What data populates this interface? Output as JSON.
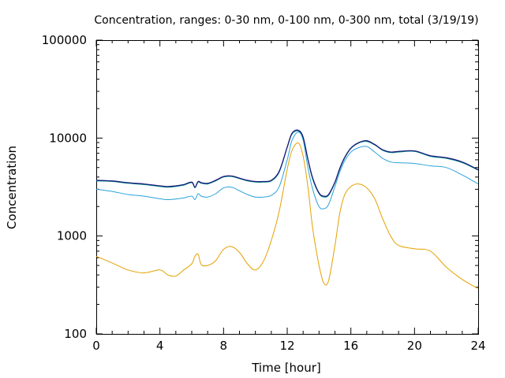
{
  "chart_data": {
    "type": "line",
    "title": "Concentration, ranges: 0-30 nm, 0-100 nm, 0-300 nm, total (3/19/19)",
    "xlabel": "Time [hour]",
    "ylabel": "Concentration",
    "xlim": [
      0,
      24
    ],
    "ylim": [
      100,
      100000
    ],
    "yscale": "log",
    "grid": false,
    "legend": "none",
    "x_ticks": [
      "0",
      "4",
      "8",
      "12",
      "16",
      "20",
      "24"
    ],
    "y_ticks": [
      "100",
      "1000",
      "10000",
      "100000"
    ],
    "x_tick_values": [
      0,
      4,
      8,
      12,
      16,
      20,
      24
    ],
    "y_tick_values": [
      100,
      1000,
      10000,
      100000
    ],
    "series": [
      {
        "color": "#e5a100",
        "x": [
          0,
          1,
          2,
          3,
          4,
          4.5,
          5,
          5.5,
          6,
          6.2,
          6.4,
          6.6,
          7,
          7.5,
          8,
          8.5,
          9,
          9.5,
          10,
          10.5,
          11,
          11.5,
          12,
          12.3,
          12.7,
          13,
          13.3,
          13.6,
          14,
          14.3,
          14.6,
          15,
          15.3,
          15.6,
          16,
          16.5,
          17,
          17.5,
          18,
          18.5,
          19,
          20,
          21,
          22,
          23,
          24
        ],
        "y": [
          620,
          530,
          450,
          420,
          450,
          400,
          390,
          450,
          520,
          620,
          650,
          510,
          500,
          560,
          730,
          780,
          680,
          520,
          450,
          550,
          900,
          1800,
          4800,
          7500,
          8900,
          6500,
          3200,
          1200,
          500,
          330,
          350,
          800,
          1700,
          2600,
          3200,
          3400,
          3100,
          2400,
          1500,
          1000,
          800,
          740,
          700,
          480,
          360,
          290
        ]
      },
      {
        "color": "#2aa3d9",
        "x": [
          0,
          1,
          2,
          3,
          4,
          4.5,
          5,
          5.5,
          6,
          6.2,
          6.4,
          6.6,
          7,
          7.5,
          8,
          8.5,
          9,
          9.5,
          10,
          10.5,
          11,
          11.5,
          12,
          12.3,
          12.7,
          13,
          13.3,
          13.6,
          14,
          14.3,
          14.6,
          15,
          15.3,
          15.6,
          16,
          16.5,
          17,
          17.5,
          18,
          18.5,
          19,
          20,
          21,
          22,
          23,
          24
        ],
        "y": [
          3000,
          2850,
          2650,
          2550,
          2400,
          2350,
          2380,
          2450,
          2550,
          2350,
          2700,
          2550,
          2500,
          2700,
          3100,
          3150,
          2900,
          2650,
          2500,
          2500,
          2600,
          3200,
          6000,
          9500,
          11500,
          9500,
          5000,
          3000,
          2000,
          1900,
          2100,
          3200,
          4500,
          5800,
          7200,
          8000,
          8200,
          7200,
          6200,
          5700,
          5600,
          5500,
          5200,
          5000,
          4200,
          3400
        ]
      },
      {
        "color": "#00a090",
        "x": [
          0,
          1,
          2,
          3,
          4,
          4.5,
          5,
          5.5,
          6,
          6.2,
          6.4,
          6.6,
          7,
          7.5,
          8,
          8.5,
          9,
          9.5,
          10,
          10.5,
          11,
          11.5,
          12,
          12.3,
          12.7,
          13,
          13.3,
          13.6,
          14,
          14.3,
          14.6,
          15,
          15.3,
          15.6,
          16,
          16.5,
          17,
          17.5,
          18,
          18.5,
          19,
          20,
          21,
          22,
          23,
          24
        ],
        "y": [
          3650,
          3600,
          3450,
          3350,
          3200,
          3150,
          3200,
          3300,
          3500,
          3100,
          3550,
          3450,
          3400,
          3650,
          4000,
          4050,
          3850,
          3650,
          3550,
          3550,
          3650,
          4500,
          8000,
          11000,
          11800,
          10000,
          6000,
          3800,
          2700,
          2500,
          2600,
          3500,
          4800,
          6200,
          7800,
          8900,
          9200,
          8500,
          7500,
          7100,
          7200,
          7300,
          6500,
          6200,
          5600,
          4700
        ]
      },
      {
        "color": "#1a1a7a",
        "x": [
          0,
          1,
          2,
          3,
          4,
          4.5,
          5,
          5.5,
          6,
          6.2,
          6.4,
          6.6,
          7,
          7.5,
          8,
          8.5,
          9,
          9.5,
          10,
          10.5,
          11,
          11.5,
          12,
          12.3,
          12.7,
          13,
          13.3,
          13.6,
          14,
          14.3,
          14.6,
          15,
          15.3,
          15.6,
          16,
          16.5,
          17,
          17.5,
          18,
          18.5,
          19,
          20,
          21,
          22,
          23,
          24
        ],
        "y": [
          3700,
          3650,
          3500,
          3400,
          3250,
          3200,
          3250,
          3350,
          3550,
          3150,
          3600,
          3500,
          3450,
          3700,
          4050,
          4100,
          3900,
          3700,
          3600,
          3600,
          3700,
          4600,
          8100,
          11200,
          12000,
          10200,
          6100,
          3900,
          2750,
          2550,
          2650,
          3550,
          4900,
          6300,
          7900,
          9000,
          9400,
          8600,
          7600,
          7200,
          7300,
          7400,
          6600,
          6300,
          5700,
          4750
        ]
      }
    ]
  }
}
